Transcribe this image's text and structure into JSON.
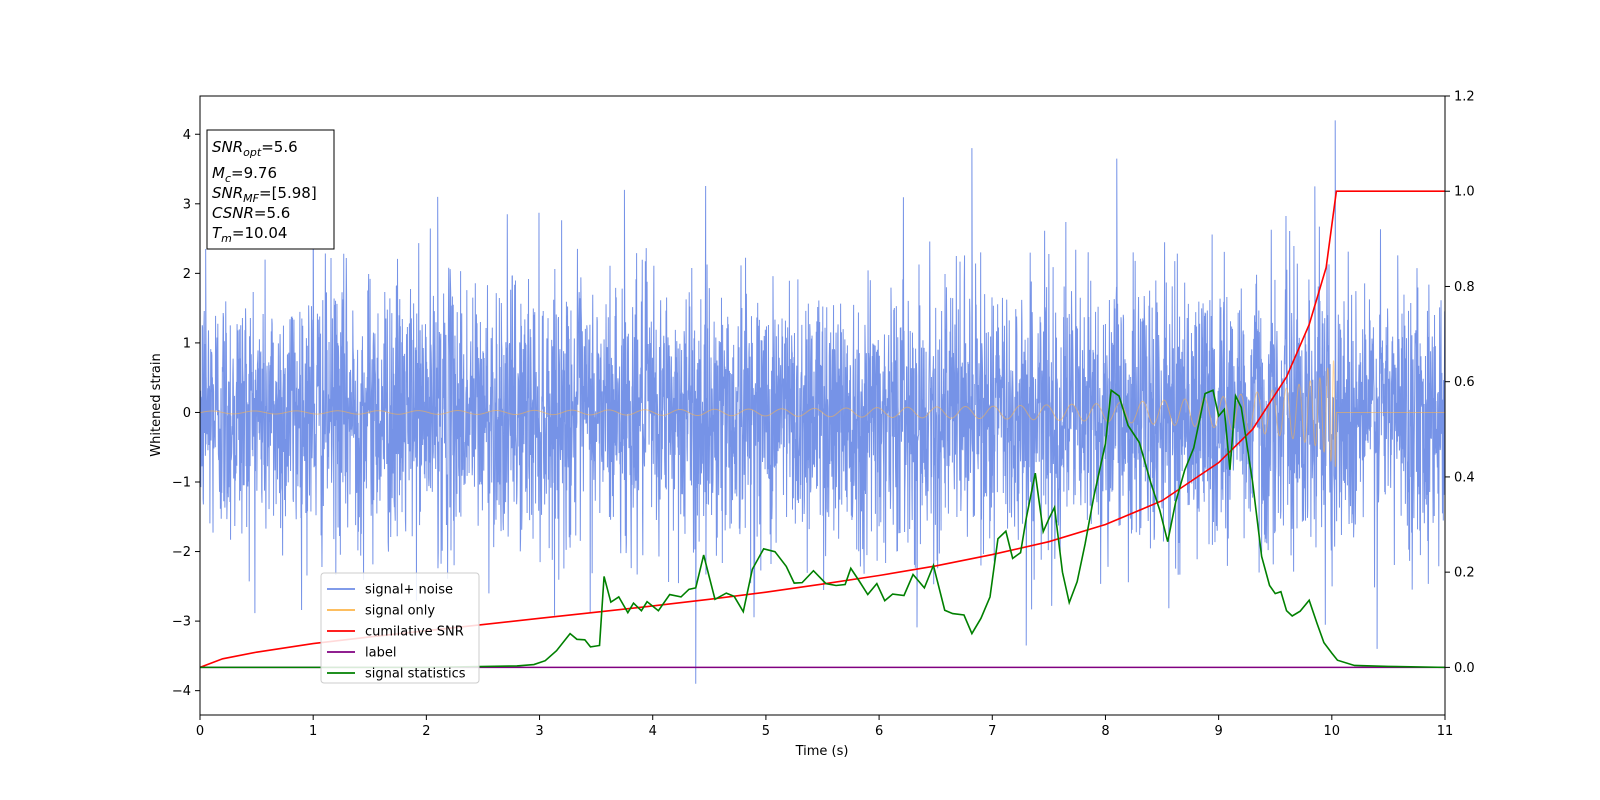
{
  "chart_data": {
    "type": "line",
    "xlabel": "Time (s)",
    "ylabel": "Whitened strain",
    "xlim": [
      0,
      11
    ],
    "ylim": [
      -4.35,
      4.55
    ],
    "y2lim": [
      -0.1,
      1.2
    ],
    "x_ticks": [
      "0",
      "1",
      "2",
      "3",
      "4",
      "5",
      "6",
      "7",
      "8",
      "9",
      "10",
      "11"
    ],
    "y_ticks": [
      "−4",
      "−3",
      "−2",
      "−1",
      "0",
      "1",
      "2",
      "3",
      "4"
    ],
    "y2_ticks": [
      "0.0",
      "0.2",
      "0.4",
      "0.6",
      "0.8",
      "1.0",
      "1.2"
    ],
    "grid": false,
    "legend_position": "lower-left",
    "legend": [
      {
        "label": "signal+ noise",
        "color": "#6f8de6"
      },
      {
        "label": "signal only",
        "color": "#fdb54a"
      },
      {
        "label": "cumilative SNR",
        "color": "#ff0000"
      },
      {
        "label": "label",
        "color": "#800080"
      },
      {
        "label": "signal statistics",
        "color": "#008000"
      }
    ],
    "info_box": {
      "snr_opt": {
        "name": "SNR",
        "sub": "opt",
        "value": "=5.6"
      },
      "mc": {
        "name": "M",
        "sub": "c",
        "value": "=9.76"
      },
      "snr_mf": {
        "name": "SNR",
        "sub": "MF",
        "value": "=[5.98]"
      },
      "csnr": {
        "name": "CSNR",
        "value": "=5.6"
      },
      "tm": {
        "name": "T",
        "sub": "m",
        "value": "=10.04"
      }
    },
    "series": [
      {
        "name": "signal+ noise",
        "axis": "left",
        "description": "whitened noisy strain, roughly gaussian with std ~0.95 across 0–11 s",
        "noise_std": 0.95,
        "peaks": [
          [
            0.05,
            2.35
          ],
          [
            1.0,
            3.25
          ],
          [
            2.1,
            3.1
          ],
          [
            3.75,
            3.2
          ],
          [
            4.38,
            -3.9
          ],
          [
            6.82,
            3.8
          ],
          [
            7.3,
            -3.35
          ],
          [
            8.1,
            3.65
          ],
          [
            9.85,
            3.25
          ],
          [
            10.03,
            4.2
          ],
          [
            10.4,
            -3.4
          ],
          [
            11.0,
            2.4
          ]
        ]
      },
      {
        "name": "signal only",
        "axis": "left",
        "description": "chirp waveform with amplitude growing towards merger at Tm = 10.04, zero afterwards",
        "envelope": [
          [
            0,
            0.02
          ],
          [
            3,
            0.03
          ],
          [
            5,
            0.05
          ],
          [
            7,
            0.09
          ],
          [
            8,
            0.13
          ],
          [
            9,
            0.22
          ],
          [
            9.6,
            0.35
          ],
          [
            9.9,
            0.5
          ],
          [
            10.04,
            0.8
          ],
          [
            10.05,
            0.0
          ],
          [
            11,
            0.0
          ]
        ]
      },
      {
        "name": "cumilative SNR",
        "axis": "right",
        "x": [
          0,
          0.2,
          0.5,
          1,
          1.5,
          2,
          2.5,
          3,
          3.5,
          4,
          4.5,
          5,
          5.5,
          6,
          6.5,
          7,
          7.5,
          8,
          8.5,
          9,
          9.3,
          9.6,
          9.8,
          9.95,
          10.04,
          10.05,
          11
        ],
        "y": [
          0.0,
          0.018,
          0.032,
          0.05,
          0.064,
          0.077,
          0.09,
          0.103,
          0.116,
          0.129,
          0.143,
          0.158,
          0.175,
          0.193,
          0.213,
          0.237,
          0.264,
          0.3,
          0.35,
          0.43,
          0.5,
          0.61,
          0.72,
          0.84,
          1.0,
          1.0,
          1.0
        ]
      },
      {
        "name": "label",
        "axis": "right",
        "x": [
          0,
          11
        ],
        "y": [
          0.0,
          0.0
        ]
      },
      {
        "name": "signal statistics",
        "axis": "right",
        "x": [
          0,
          1,
          2,
          2.8,
          2.95,
          3.05,
          3.15,
          3.27,
          3.33,
          3.4,
          3.45,
          3.53,
          3.57,
          3.63,
          3.7,
          3.78,
          3.83,
          3.9,
          3.95,
          4.05,
          4.15,
          4.25,
          4.32,
          4.38,
          4.45,
          4.55,
          4.65,
          4.72,
          4.8,
          4.88,
          4.98,
          5.08,
          5.18,
          5.25,
          5.32,
          5.42,
          5.53,
          5.62,
          5.7,
          5.75,
          5.82,
          5.9,
          5.98,
          6.05,
          6.12,
          6.22,
          6.3,
          6.4,
          6.48,
          6.58,
          6.65,
          6.75,
          6.82,
          6.9,
          6.98,
          7.05,
          7.12,
          7.18,
          7.25,
          7.3,
          7.38,
          7.45,
          7.5,
          7.55,
          7.62,
          7.68,
          7.75,
          7.82,
          7.9,
          8.0,
          8.05,
          8.12,
          8.2,
          8.3,
          8.4,
          8.48,
          8.55,
          8.62,
          8.7,
          8.78,
          8.88,
          8.95,
          9.0,
          9.05,
          9.1,
          9.15,
          9.2,
          9.3,
          9.38,
          9.45,
          9.5,
          9.55,
          9.6,
          9.65,
          9.72,
          9.8,
          9.87,
          9.93,
          10.0,
          10.05,
          10.2,
          10.5,
          11
        ],
        "y": [
          0.0,
          0.0,
          0.0,
          0.003,
          0.006,
          0.014,
          0.035,
          0.071,
          0.059,
          0.058,
          0.043,
          0.046,
          0.191,
          0.137,
          0.148,
          0.115,
          0.135,
          0.119,
          0.138,
          0.119,
          0.153,
          0.148,
          0.164,
          0.167,
          0.236,
          0.143,
          0.156,
          0.149,
          0.117,
          0.206,
          0.249,
          0.243,
          0.212,
          0.177,
          0.178,
          0.203,
          0.176,
          0.172,
          0.174,
          0.208,
          0.183,
          0.153,
          0.176,
          0.14,
          0.154,
          0.151,
          0.195,
          0.167,
          0.214,
          0.12,
          0.113,
          0.11,
          0.071,
          0.103,
          0.148,
          0.27,
          0.286,
          0.229,
          0.241,
          0.313,
          0.408,
          0.285,
          0.312,
          0.336,
          0.2,
          0.136,
          0.18,
          0.259,
          0.362,
          0.47,
          0.582,
          0.57,
          0.508,
          0.472,
          0.388,
          0.33,
          0.264,
          0.347,
          0.414,
          0.461,
          0.575,
          0.582,
          0.528,
          0.542,
          0.415,
          0.57,
          0.546,
          0.389,
          0.233,
          0.172,
          0.155,
          0.159,
          0.119,
          0.108,
          0.118,
          0.141,
          0.092,
          0.052,
          0.03,
          0.015,
          0.004,
          0.002,
          0.0
        ]
      }
    ]
  }
}
